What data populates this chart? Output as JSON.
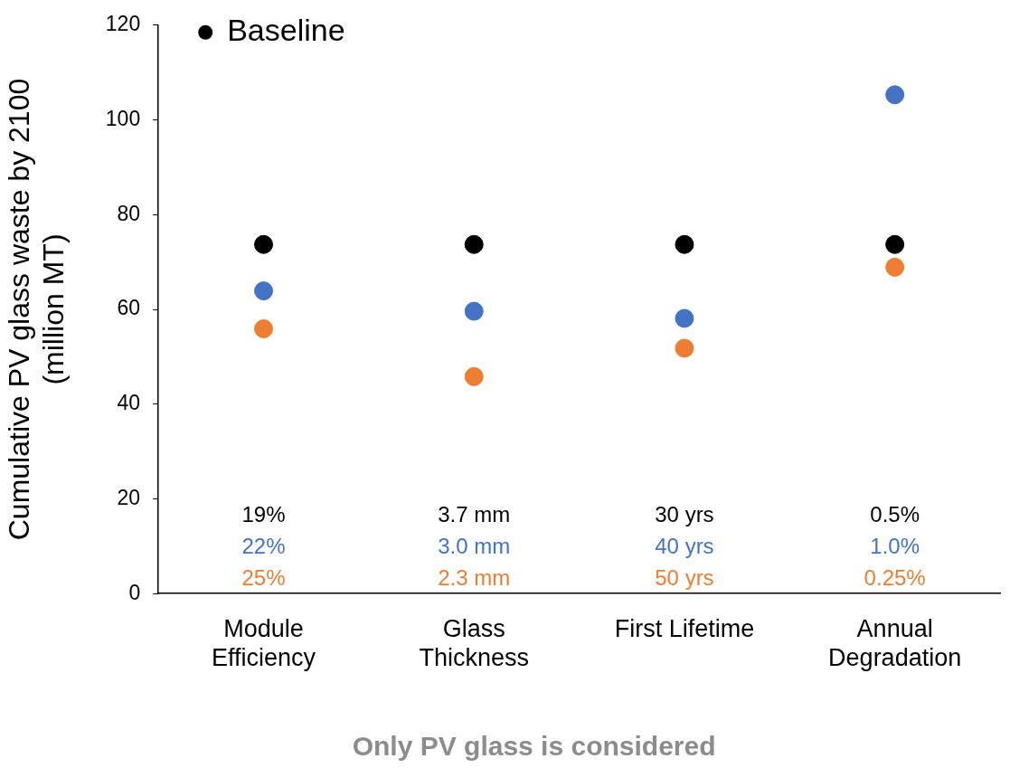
{
  "chart_data": {
    "type": "scatter",
    "ylabel": "Cumulative PV glass waste by 2100 (million MT)",
    "categories": [
      "Module Efficiency",
      "Glass Thickness",
      "First Lifetime",
      "Annual Degradation"
    ],
    "series": [
      {
        "name": "Baseline",
        "color": "#000000",
        "values": [
          73.7,
          73.7,
          73.7,
          73.7
        ]
      },
      {
        "color": "#4472c4",
        "values": [
          63.9,
          59.6,
          58.1,
          105.3
        ]
      },
      {
        "color": "#ed7d31",
        "values": [
          55.9,
          45.8,
          51.8,
          68.9
        ]
      }
    ],
    "ylim": [
      0,
      120
    ],
    "yticks": [
      0,
      20,
      40,
      60,
      80,
      100,
      120
    ],
    "grid": false,
    "legend": "top left",
    "marker": "circle",
    "annotations": [
      "19%",
      "22%",
      "25%",
      "3.7 mm",
      "3.0 mm",
      "2.3 mm",
      "30 yrs",
      "40 yrs",
      "50 yrs",
      "0.5%",
      "1.0%",
      "0.25%",
      "Only PV glass is considered"
    ]
  }
}
